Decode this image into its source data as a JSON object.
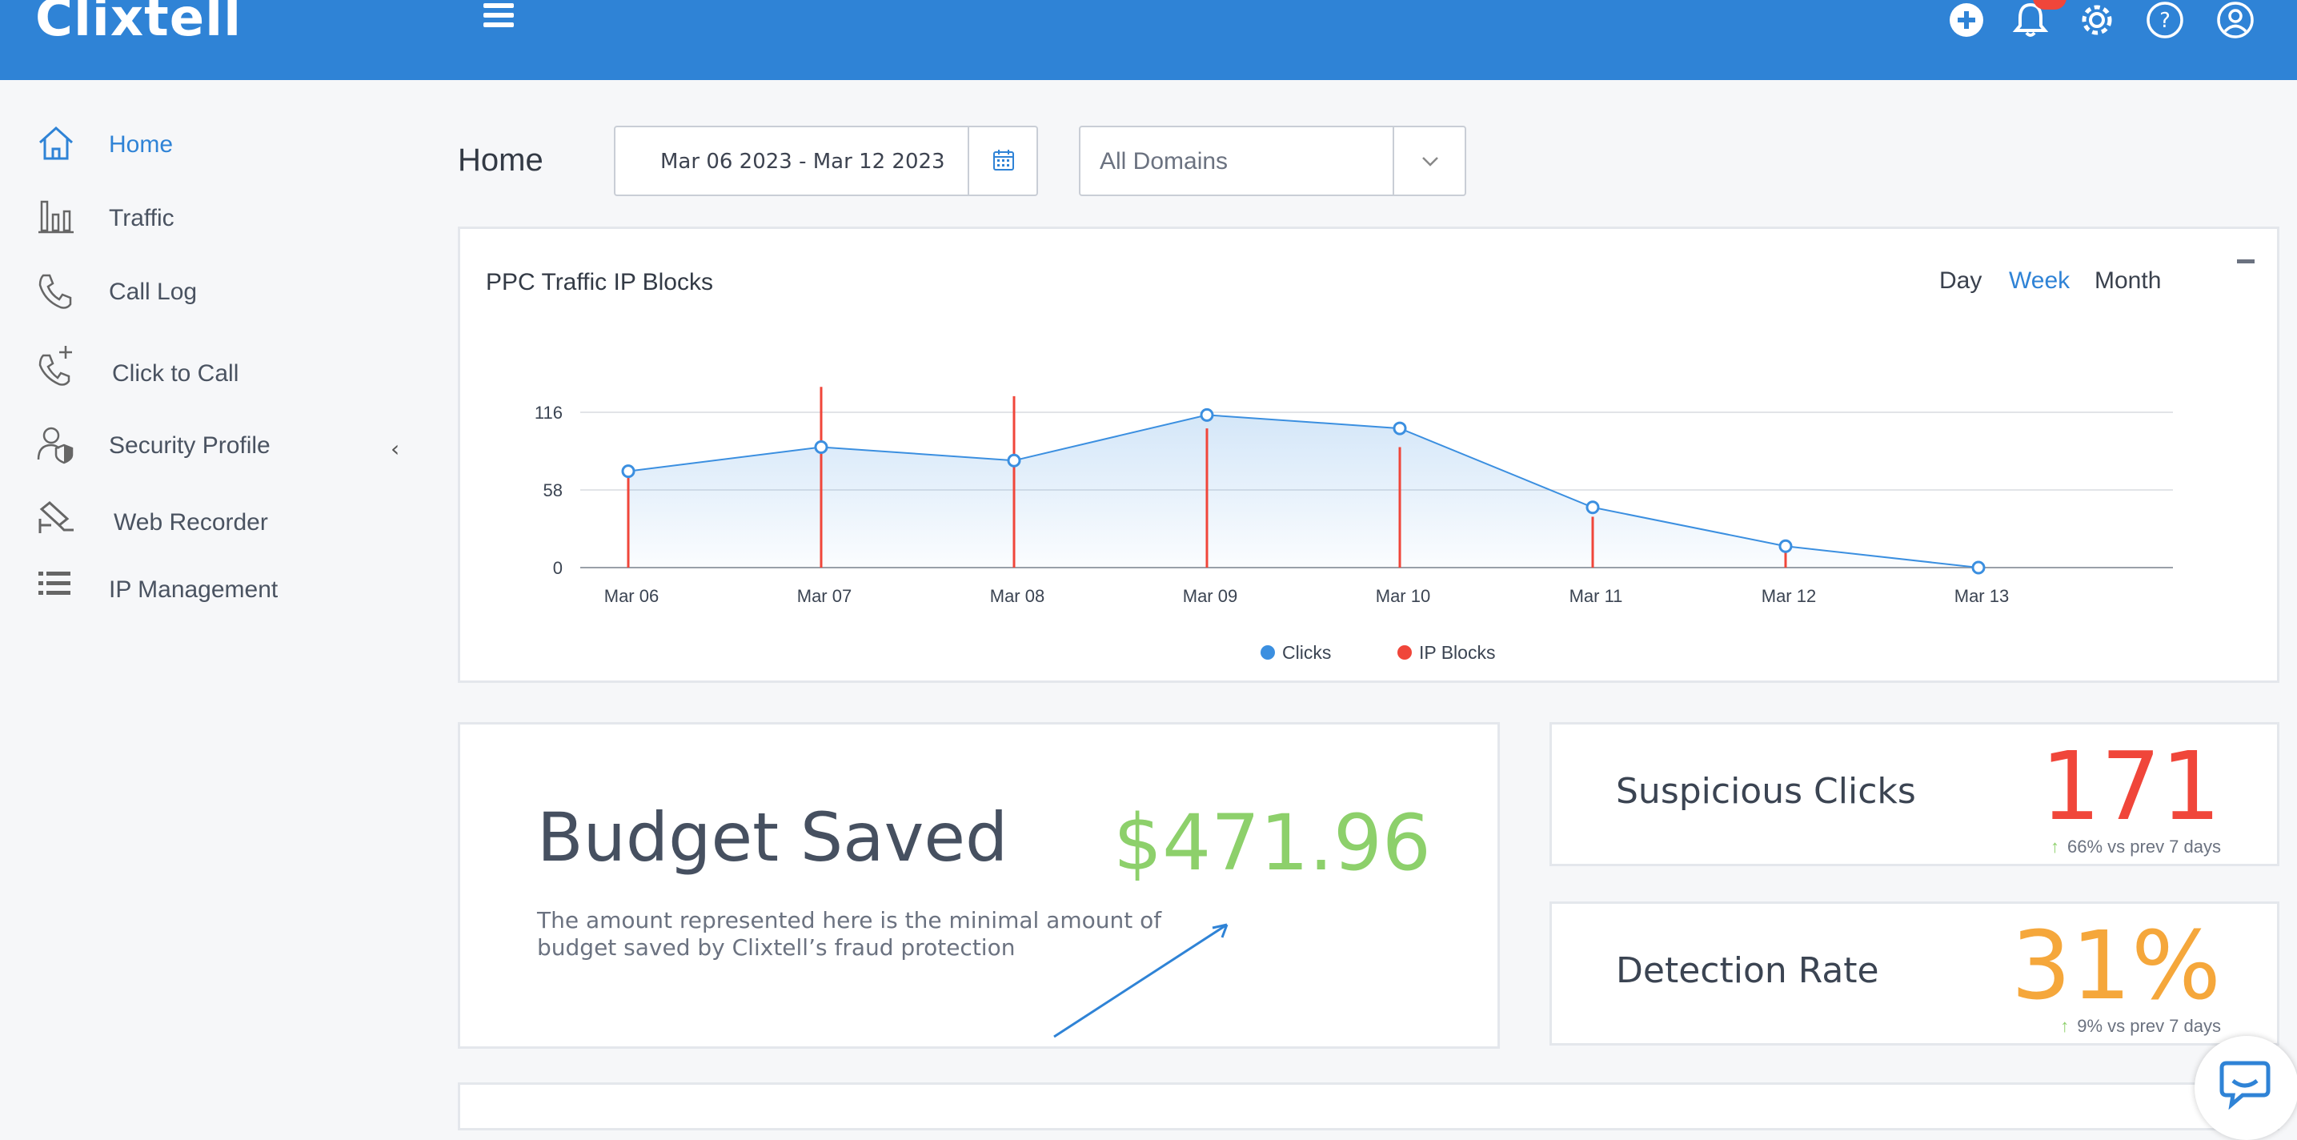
{
  "app": {
    "logo_text": "Clixtell"
  },
  "topbar": {
    "icons": [
      "plus-circle-icon",
      "bell-icon",
      "gear-icon",
      "help-icon",
      "user-icon"
    ],
    "accent": "#2f83d6",
    "badge_color": "#f0463a"
  },
  "sidebar": {
    "items": [
      {
        "label": "Home",
        "icon": "home-icon",
        "active": true
      },
      {
        "label": "Traffic",
        "icon": "bar-chart-icon"
      },
      {
        "label": "Call Log",
        "icon": "phone-icon"
      },
      {
        "label": "Click to Call",
        "icon": "phone-plus-icon"
      },
      {
        "label": "Security Profile",
        "icon": "user-shield-icon",
        "has_submenu": true
      },
      {
        "label": "Web Recorder",
        "icon": "camera-icon"
      },
      {
        "label": "IP Management",
        "icon": "list-icon"
      }
    ]
  },
  "header": {
    "title": "Home",
    "date_range": "Mar 06 2023 - Mar 12 2023",
    "domain_select": "All Domains"
  },
  "chart_card": {
    "title": "PPC Traffic IP Blocks",
    "range_tabs": [
      "Day",
      "Week",
      "Month"
    ],
    "active_tab": "Week"
  },
  "chart_data": {
    "type": "line",
    "categories": [
      "Mar 06",
      "Mar 07",
      "Mar 08",
      "Mar 09",
      "Mar 10",
      "Mar 11",
      "Mar 12",
      "Mar 13"
    ],
    "y_ticks": [
      0,
      58,
      116
    ],
    "ylim": [
      0,
      116
    ],
    "grid": true,
    "legend_position": "bottom",
    "series": [
      {
        "name": "Clicks",
        "type": "area-line",
        "color": "#3b8fe0",
        "values": [
          72,
          90,
          80,
          114,
          104,
          45,
          16,
          0
        ]
      },
      {
        "name": "IP Blocks",
        "type": "bar",
        "color": "#f0463a",
        "values": [
          72,
          135,
          128,
          104,
          90,
          38,
          12,
          0
        ]
      }
    ]
  },
  "budget": {
    "title": "Budget Saved",
    "value": "$471.96",
    "description": "The amount represented here is the minimal amount of budget saved by Clixtell’s fraud protection"
  },
  "stats": [
    {
      "label": "Suspicious Clicks",
      "value": "171",
      "color": "#f0463a",
      "change": "66% vs prev 7 days"
    },
    {
      "label": "Detection Rate",
      "value": "31%",
      "color": "#f5a73b",
      "change": "9% vs prev 7 days"
    }
  ]
}
